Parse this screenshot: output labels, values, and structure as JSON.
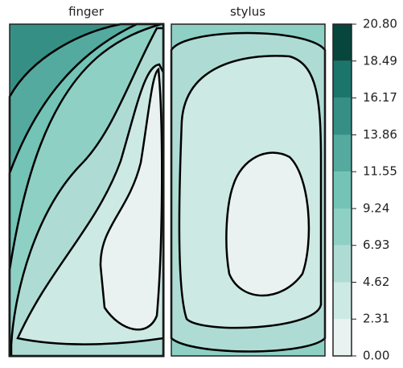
{
  "chart_data": {
    "type": "contour",
    "panels": [
      "finger",
      "stylus"
    ],
    "levels": [
      {
        "value": 0,
        "label": "0.00"
      },
      2.31,
      4.62,
      6.93,
      9.24,
      11.55,
      13.86,
      16.17,
      18.49,
      {
        "value": 20.8,
        "label": "20.80"
      }
    ],
    "colors": [
      "#e9f2f1",
      "#cde9e4",
      "#aedcd4",
      "#8fd0c5",
      "#73c3b6",
      "#55aa9f",
      "#368f85",
      "#1a766b",
      "#06463d"
    ]
  }
}
